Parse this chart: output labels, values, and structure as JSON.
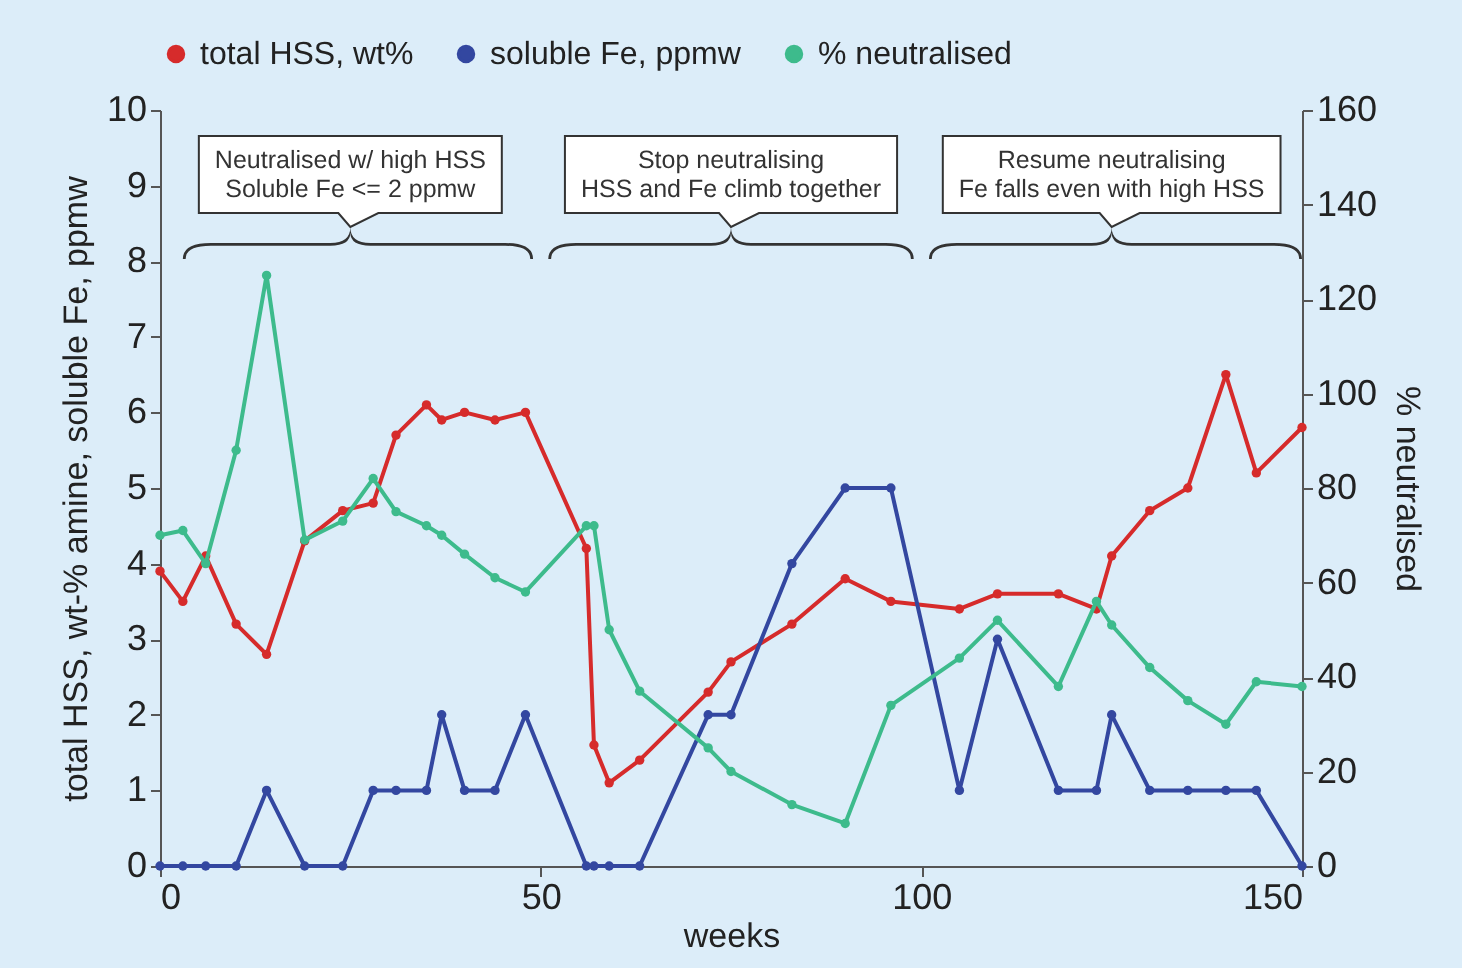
{
  "chart_data": {
    "type": "line",
    "xlabel": "weeks",
    "ylabel": "total HSS, wt-% amine, soluble Fe, ppmw",
    "y2label": "% neutralised",
    "x": [
      0,
      3,
      6,
      10,
      14,
      19,
      24,
      28,
      31,
      35,
      37,
      40,
      44,
      48,
      56,
      57,
      59,
      63,
      72,
      75,
      83,
      90,
      96,
      105,
      110,
      118,
      123,
      125,
      130,
      135,
      140,
      144,
      150
    ],
    "series": [
      {
        "name": "total HSS, wt%",
        "color": "#d62b2b",
        "values": [
          3.9,
          3.5,
          4.1,
          3.2,
          2.8,
          4.3,
          4.7,
          4.8,
          5.7,
          6.1,
          5.9,
          6.0,
          5.9,
          6.0,
          4.2,
          1.6,
          1.1,
          1.4,
          2.3,
          2.7,
          3.2,
          3.8,
          3.5,
          3.4,
          3.6,
          3.6,
          3.4,
          4.1,
          4.7,
          5.0,
          6.5,
          5.2,
          5.8
        ]
      },
      {
        "name": "soluble Fe, ppmw",
        "color": "#3347a0",
        "values": [
          0,
          0,
          0,
          0,
          1,
          0,
          0,
          1,
          1,
          1,
          2,
          1,
          1,
          2,
          0,
          0,
          0,
          0,
          2,
          2,
          4,
          5,
          5,
          1,
          3,
          1,
          1,
          2,
          1,
          1,
          1,
          1,
          0
        ]
      },
      {
        "name": "% neutralised",
        "color": "#3dbb8c",
        "axis": "y2",
        "values": [
          70,
          71,
          64,
          88,
          125,
          69,
          73,
          82,
          75,
          72,
          70,
          66,
          61,
          58,
          72,
          72,
          50,
          37,
          25,
          20,
          13,
          9,
          34,
          44,
          52,
          38,
          56,
          51,
          42,
          35,
          30,
          39,
          38
        ]
      }
    ],
    "xlim": [
      0,
      150
    ],
    "xticks": [
      0,
      50,
      100,
      150
    ],
    "ylim": [
      0,
      10
    ],
    "yticks": [
      0,
      1,
      2,
      3,
      4,
      5,
      6,
      7,
      8,
      9,
      10
    ],
    "y2lim": [
      0,
      160
    ],
    "y2ticks": [
      0,
      20,
      40,
      60,
      80,
      100,
      120,
      140,
      160
    ],
    "annotations": [
      "Neutralised w/ high HSS\nSoluble Fe <= 2 ppmw",
      "Stop neutralising\nHSS and Fe climb together",
      "Resume neutralising\nFe falls even with high HSS"
    ],
    "legend": "top",
    "grid": false,
    "marker": "circle",
    "line_style": "solid"
  }
}
